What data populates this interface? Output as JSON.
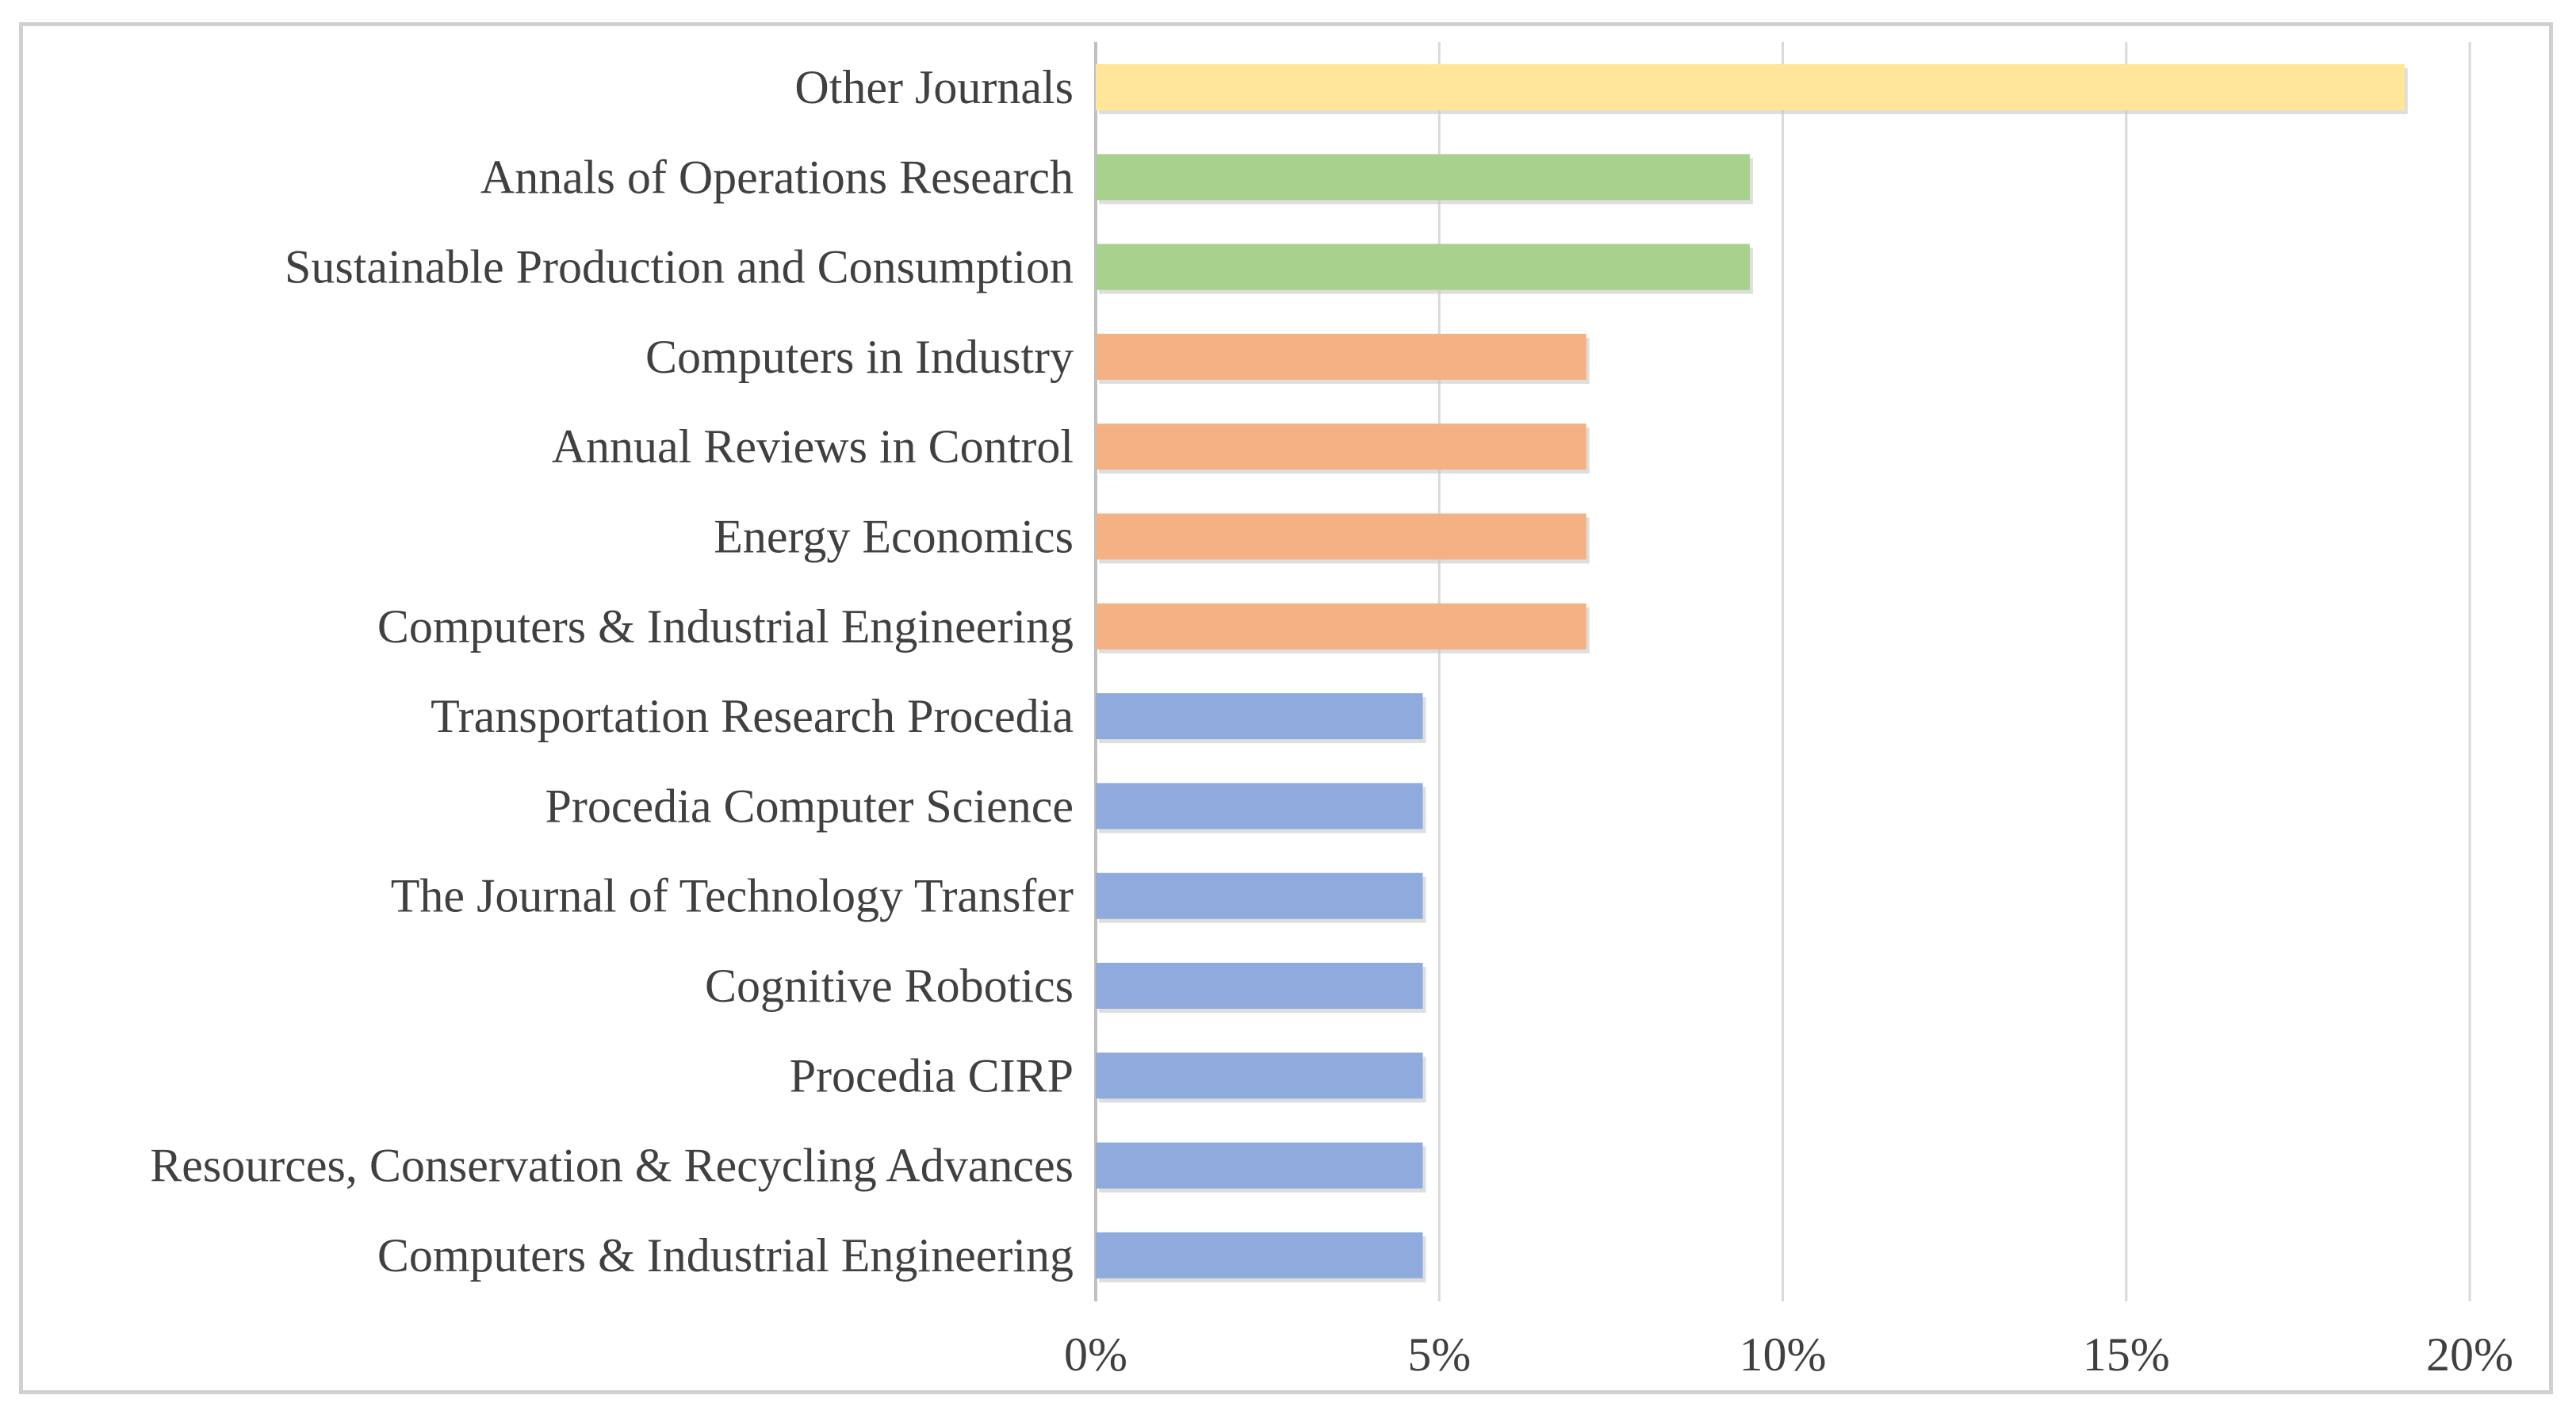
{
  "chart_data": {
    "type": "bar",
    "orientation": "horizontal",
    "categories": [
      "Other Journals",
      "Annals of Operations Research",
      "Sustainable Production and Consumption",
      "Computers in Industry",
      "Annual Reviews in Control",
      "Energy Economics",
      "Computers & Industrial Engineering",
      "Transportation Research Procedia",
      "Procedia Computer Science",
      "The Journal of Technology Transfer",
      "Cognitive Robotics",
      "Procedia CIRP",
      "Resources, Conservation & Recycling Advances",
      "Computers & Industrial Engineering"
    ],
    "values": [
      19.05,
      9.52,
      9.52,
      7.14,
      7.14,
      7.14,
      7.14,
      4.76,
      4.76,
      4.76,
      4.76,
      4.76,
      4.76,
      4.76
    ],
    "colors": [
      "#ffe699",
      "#a9d18e",
      "#a9d18e",
      "#f4b183",
      "#f4b183",
      "#f4b183",
      "#f4b183",
      "#8faadc",
      "#8faadc",
      "#8faadc",
      "#8faadc",
      "#8faadc",
      "#8faadc",
      "#8faadc"
    ],
    "xticks": [
      0,
      5,
      10,
      15,
      20
    ],
    "xtick_labels": [
      "0%",
      "5%",
      "10%",
      "15%",
      "20%"
    ],
    "xlim": [
      0,
      20
    ],
    "grid": true,
    "title": "",
    "xlabel": "",
    "ylabel": ""
  }
}
